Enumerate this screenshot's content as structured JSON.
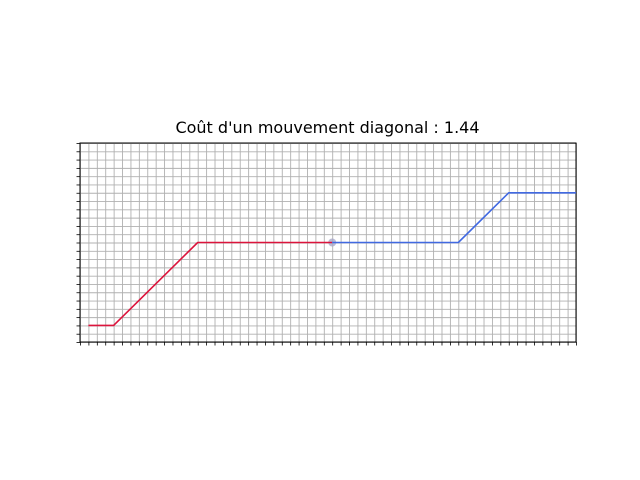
{
  "chart_data": {
    "type": "line",
    "title": "Coût d'un mouvement diagonal : 1.44",
    "xlabel": "",
    "ylabel": "",
    "xlim": [
      0,
      59
    ],
    "ylim": [
      0,
      24
    ],
    "grid": true,
    "tick_labels": false,
    "series": [
      {
        "color": "#dc143c",
        "points": [
          [
            1,
            2
          ],
          [
            4,
            2
          ],
          [
            14,
            12
          ],
          [
            30,
            12
          ]
        ]
      },
      {
        "color": "#4169e1",
        "points": [
          [
            30,
            12
          ],
          [
            45,
            12
          ],
          [
            51,
            18
          ],
          [
            59,
            18
          ]
        ]
      }
    ],
    "marker": {
      "x": 30,
      "y": 12,
      "color": "#a9a9c9"
    }
  }
}
